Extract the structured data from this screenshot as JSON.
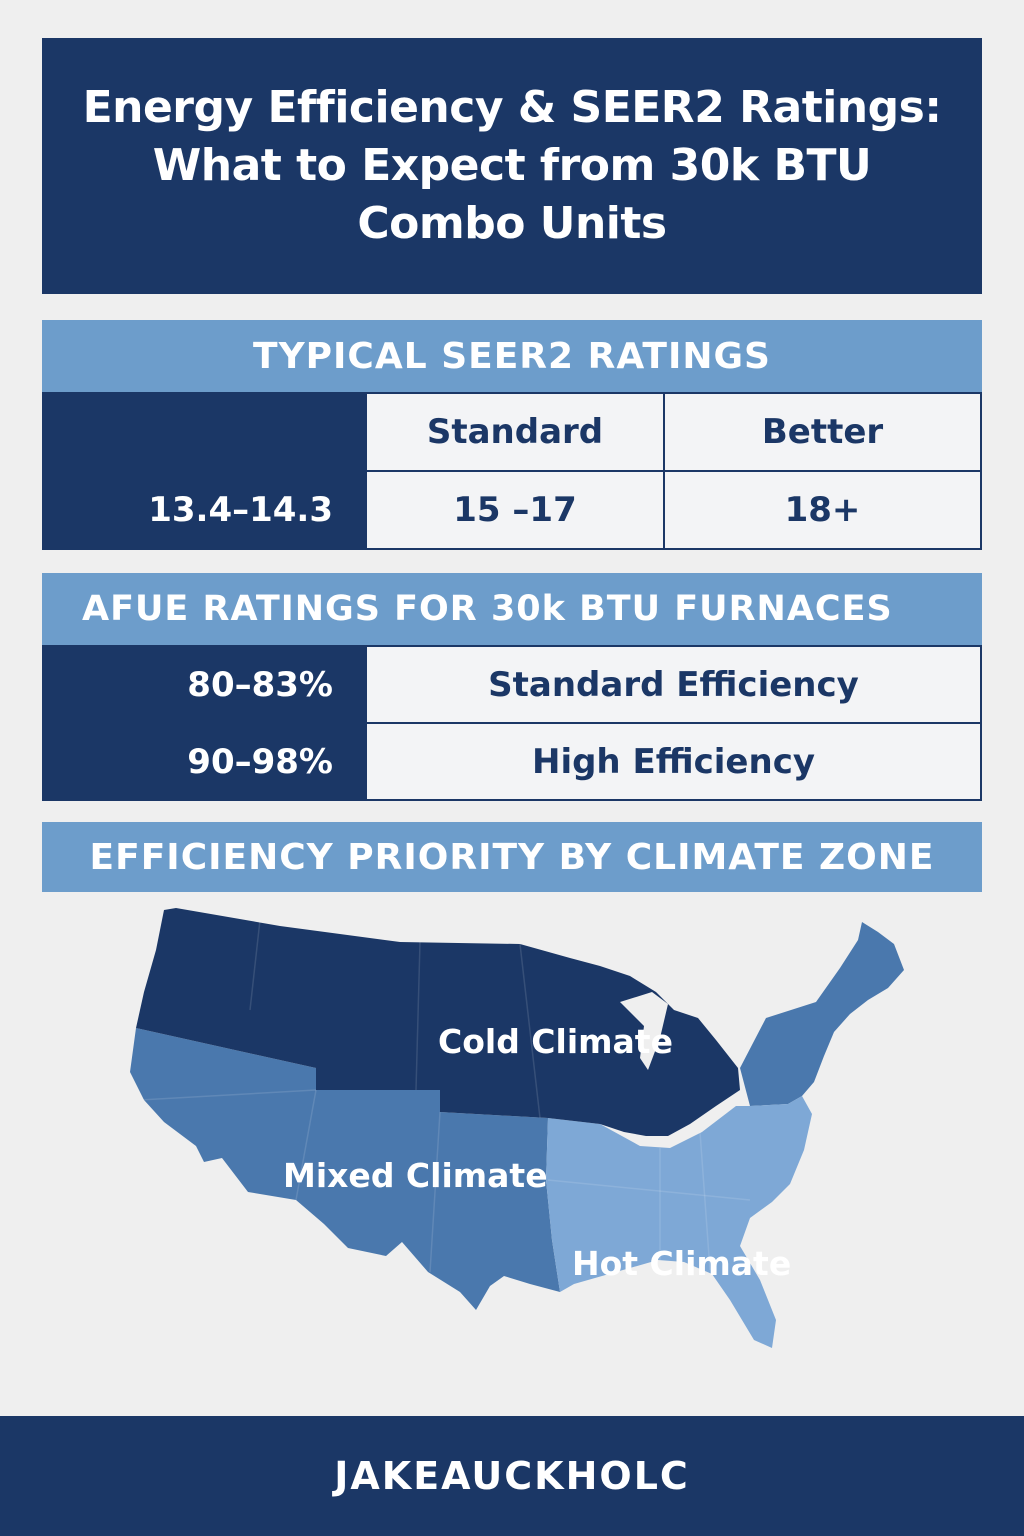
{
  "title": {
    "line1": "Energy Efficiency & SEER2 Ratings:",
    "line2": "What to Expect from 30k BTU",
    "line3": "Combo Units"
  },
  "seer": {
    "header": "TYPICAL SEER2 RATINGS",
    "columns": [
      "",
      "Standard",
      "Better"
    ],
    "values": [
      "13.4–14.3",
      "15 –17",
      "18+"
    ]
  },
  "afue": {
    "header": "AFUE RATINGS FOR 30k BTU FURNACES",
    "rows": [
      {
        "range": "80–83%",
        "label": "Standard Efficiency"
      },
      {
        "range": "90–98%",
        "label": "High Efficiency"
      }
    ]
  },
  "climate": {
    "header": "EFFICIENCY PRIORITY BY CLIMATE ZONE",
    "zones": {
      "cold": "Cold Climate",
      "mixed": "Mixed Climate",
      "hot": "Hot Climate"
    }
  },
  "colors": {
    "navy": "#1b3766",
    "light_blue": "#6d9dcb",
    "mid_blue": "#4a78ad",
    "pale_blue": "#7ea8d6"
  },
  "footer": {
    "brand": "JAKEAUCKHOLC"
  }
}
